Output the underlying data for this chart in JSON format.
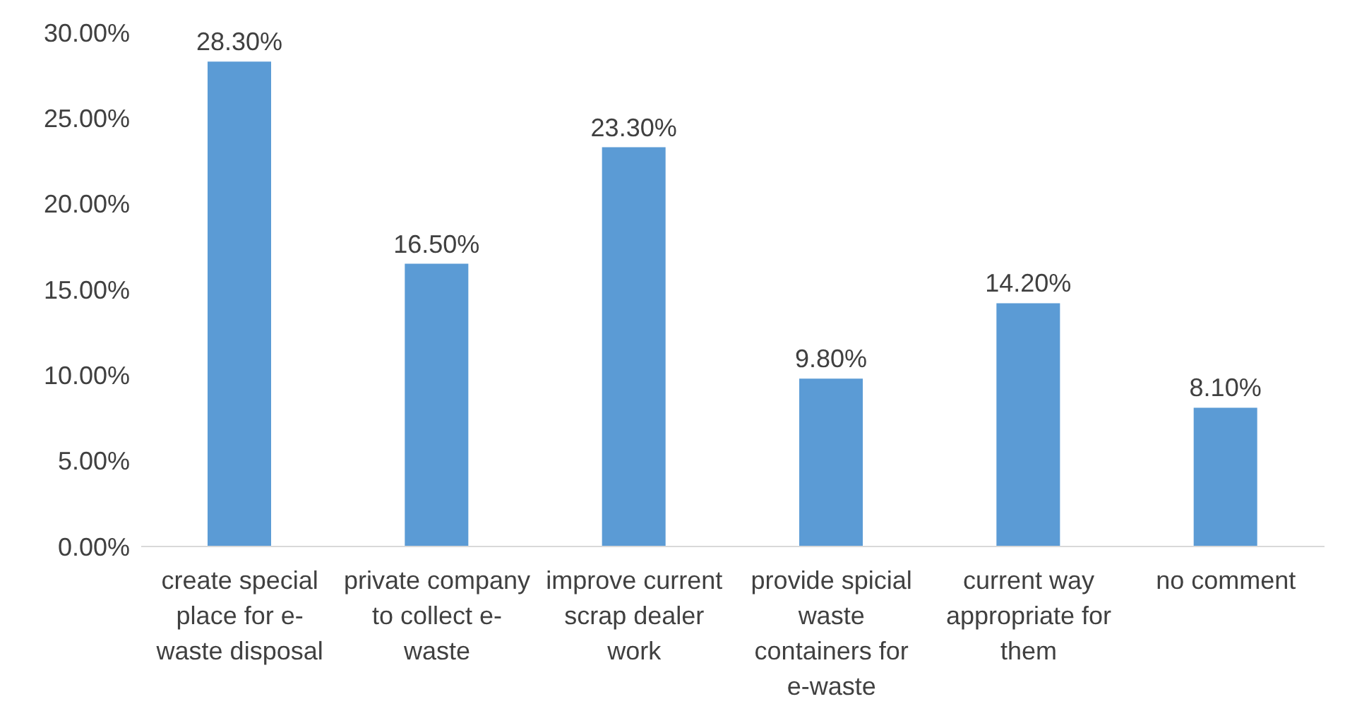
{
  "chart_data": {
    "type": "bar",
    "categories": [
      "create special place for e-waste disposal",
      "private company to collect e-waste",
      "improve current scrap dealer work",
      "provide spicial waste containers for e-waste",
      "current way appropriate for them",
      "no comment"
    ],
    "values": [
      28.3,
      16.5,
      23.3,
      9.8,
      14.2,
      8.1
    ],
    "value_labels": [
      "28.30%",
      "16.50%",
      "23.30%",
      "9.80%",
      "14.20%",
      "8.10%"
    ],
    "color": "#5b9bd5",
    "ylim": [
      0,
      30
    ],
    "yticks": [
      {
        "value": 0,
        "label": "0.00%"
      },
      {
        "value": 5,
        "label": "5.00%"
      },
      {
        "value": 10,
        "label": "10.00%"
      },
      {
        "value": 15,
        "label": "15.00%"
      },
      {
        "value": 20,
        "label": "20.00%"
      },
      {
        "value": 25,
        "label": "25.00%"
      },
      {
        "value": 30,
        "label": "30.00%"
      }
    ],
    "grid": false,
    "legend": false
  }
}
